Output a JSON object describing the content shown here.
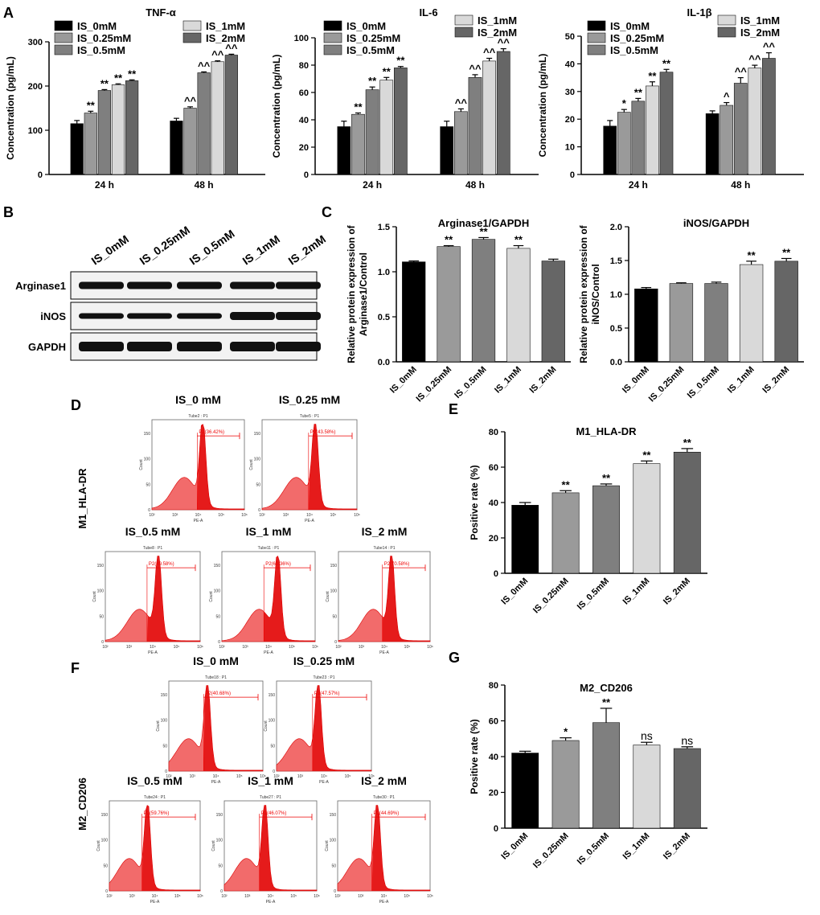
{
  "panel_letters": {
    "a": "A",
    "b": "B",
    "c": "C",
    "d": "D",
    "e": "E",
    "f": "F",
    "g": "G"
  },
  "chart_data": [
    {
      "id": "tnf",
      "type": "bar",
      "title": "TNF-α",
      "ylabel": "Concentration (pg/mL)",
      "ylim": [
        0,
        300
      ],
      "yticks": [
        0,
        100,
        200,
        300
      ],
      "groups": [
        "24 h",
        "48 h"
      ],
      "series": [
        {
          "name": "IS_0mM",
          "color": "#000000",
          "values": [
            115,
            121
          ],
          "errors": [
            7,
            6
          ],
          "sig": [
            "",
            ""
          ]
        },
        {
          "name": "IS_0.25mM",
          "color": "#9a9a9a",
          "values": [
            139,
            150
          ],
          "errors": [
            4,
            3
          ],
          "sig": [
            "**",
            "^^"
          ]
        },
        {
          "name": "IS_0.5mM",
          "color": "#7f7f7f",
          "values": [
            190,
            230
          ],
          "errors": [
            2,
            2
          ],
          "sig": [
            "**",
            "^^"
          ]
        },
        {
          "name": "IS_1mM",
          "color": "#d9d9d9",
          "values": [
            203,
            255
          ],
          "errors": [
            2,
            2
          ],
          "sig": [
            "**",
            "^^"
          ]
        },
        {
          "name": "IS_2mM",
          "color": "#666666",
          "values": [
            212,
            270
          ],
          "errors": [
            2,
            2
          ],
          "sig": [
            "**",
            "^^"
          ]
        }
      ]
    },
    {
      "id": "il6",
      "type": "bar",
      "title": "IL-6",
      "ylabel": "Concentration (pg/mL)",
      "ylim": [
        0,
        100
      ],
      "yticks": [
        0,
        20,
        40,
        60,
        80,
        100
      ],
      "groups": [
        "24 h",
        "48 h"
      ],
      "series": [
        {
          "name": "IS_0mM",
          "color": "#000000",
          "values": [
            35,
            35
          ],
          "errors": [
            4,
            4
          ],
          "sig": [
            "",
            ""
          ]
        },
        {
          "name": "IS_0.25mM",
          "color": "#9a9a9a",
          "values": [
            44,
            46
          ],
          "errors": [
            1,
            2
          ],
          "sig": [
            "**",
            "^^"
          ]
        },
        {
          "name": "IS_0.5mM",
          "color": "#7f7f7f",
          "values": [
            62,
            71
          ],
          "errors": [
            2,
            2
          ],
          "sig": [
            "**",
            "^^"
          ]
        },
        {
          "name": "IS_1mM",
          "color": "#d9d9d9",
          "values": [
            69,
            83
          ],
          "errors": [
            2,
            2
          ],
          "sig": [
            "**",
            "^^"
          ]
        },
        {
          "name": "IS_2mM",
          "color": "#666666",
          "values": [
            78,
            90
          ],
          "errors": [
            1,
            2
          ],
          "sig": [
            "**",
            "^^"
          ]
        }
      ]
    },
    {
      "id": "il1b",
      "type": "bar",
      "title": "IL-1β",
      "ylabel": "Concentration (pg/mL)",
      "ylim": [
        0,
        50
      ],
      "yticks": [
        0,
        10,
        20,
        30,
        40,
        50
      ],
      "groups": [
        "24 h",
        "48 h"
      ],
      "series": [
        {
          "name": "IS_0mM",
          "color": "#000000",
          "values": [
            17.5,
            22
          ],
          "errors": [
            2,
            1
          ],
          "sig": [
            "",
            ""
          ]
        },
        {
          "name": "IS_0.25mM",
          "color": "#9a9a9a",
          "values": [
            22.5,
            25
          ],
          "errors": [
            1,
            1
          ],
          "sig": [
            "*",
            "^"
          ]
        },
        {
          "name": "IS_0.5mM",
          "color": "#7f7f7f",
          "values": [
            26.5,
            33
          ],
          "errors": [
            1,
            2
          ],
          "sig": [
            "**",
            "^^"
          ]
        },
        {
          "name": "IS_1mM",
          "color": "#d9d9d9",
          "values": [
            32,
            38.5
          ],
          "errors": [
            1.5,
            1
          ],
          "sig": [
            "**",
            "^^"
          ]
        },
        {
          "name": "IS_2mM",
          "color": "#666666",
          "values": [
            37,
            42
          ],
          "errors": [
            1,
            2
          ],
          "sig": [
            "**",
            "^^"
          ]
        }
      ]
    },
    {
      "id": "arg",
      "type": "bar",
      "title": "Arginase1/GAPDH",
      "ylabel_lines": [
        "Relative protein expression of",
        "Arginase1/Control"
      ],
      "ylim": [
        0,
        1.5
      ],
      "yticks": [
        0.0,
        0.5,
        1.0,
        1.5
      ],
      "tick_decimals": 1,
      "categories": [
        "IS_0mM",
        "IS_0.25mM",
        "IS_0.5mM",
        "IS_1mM",
        "IS_2mM"
      ],
      "colors": [
        "#000000",
        "#9a9a9a",
        "#7f7f7f",
        "#d9d9d9",
        "#666666"
      ],
      "values": [
        1.11,
        1.28,
        1.36,
        1.26,
        1.12
      ],
      "errors": [
        0.01,
        0.01,
        0.02,
        0.03,
        0.02
      ],
      "sig": [
        "",
        "**",
        "**",
        "**",
        ""
      ]
    },
    {
      "id": "inos",
      "type": "bar",
      "title": "iNOS/GAPDH",
      "ylabel_lines": [
        "Relative protein expression of",
        "iNOS/Control"
      ],
      "ylim": [
        0,
        2.0
      ],
      "yticks": [
        0.0,
        0.5,
        1.0,
        1.5,
        2.0
      ],
      "tick_decimals": 1,
      "categories": [
        "IS_0mM",
        "IS_0.25mM",
        "IS_0.5mM",
        "IS_1mM",
        "IS_2mM"
      ],
      "colors": [
        "#000000",
        "#9a9a9a",
        "#7f7f7f",
        "#d9d9d9",
        "#666666"
      ],
      "values": [
        1.08,
        1.16,
        1.16,
        1.44,
        1.49
      ],
      "errors": [
        0.02,
        0.01,
        0.02,
        0.05,
        0.04
      ],
      "sig": [
        "",
        "",
        "",
        "**",
        "**"
      ]
    },
    {
      "id": "m1",
      "type": "bar",
      "title": "M1_HLA-DR",
      "ylabel": "Positive rate (%)",
      "ylim": [
        0,
        80
      ],
      "yticks": [
        0,
        20,
        40,
        60,
        80
      ],
      "categories": [
        "IS_0mM",
        "IS_0.25mM",
        "IS_0.5mM",
        "IS_1mM",
        "IS_2mM"
      ],
      "colors": [
        "#000000",
        "#9a9a9a",
        "#7f7f7f",
        "#d9d9d9",
        "#666666"
      ],
      "values": [
        38.5,
        45.5,
        49.5,
        62,
        68.5
      ],
      "errors": [
        1.5,
        1.2,
        1.0,
        1.5,
        2.0
      ],
      "sig": [
        "",
        "**",
        "**",
        "**",
        "**"
      ]
    },
    {
      "id": "m2",
      "type": "bar",
      "title": "M2_CD206",
      "ylabel": "Positive rate (%)",
      "ylim": [
        0,
        80
      ],
      "yticks": [
        0,
        20,
        40,
        60,
        80
      ],
      "categories": [
        "IS_0mM",
        "IS_0.25mM",
        "IS_0.5mM",
        "IS_1mM",
        "IS_2mM"
      ],
      "colors": [
        "#000000",
        "#9a9a9a",
        "#7f7f7f",
        "#d9d9d9",
        "#666666"
      ],
      "values": [
        42,
        49,
        59,
        46.5,
        44.5
      ],
      "errors": [
        1.0,
        1.5,
        8.0,
        1.5,
        1.0
      ],
      "sig": [
        "",
        "*",
        "**",
        "ns",
        "ns"
      ]
    }
  ],
  "western_blot": {
    "lane_labels": [
      "IS_0mM",
      "IS_0.25mM",
      "IS_0.5mM",
      "IS_1mM",
      "IS_2mM"
    ],
    "rows": [
      "Arginase1",
      "iNOS",
      "GAPDH"
    ]
  },
  "flow": {
    "d_side_label": "M1_HLA-DR",
    "f_side_label": "M2_CD206",
    "d_plots": [
      {
        "title": "IS_0 mM",
        "tube": "Tube2 : P1",
        "gate": "P2(36.42%)"
      },
      {
        "title": "IS_0.25 mM",
        "tube": "Tube5 : P1",
        "gate": "P2(43.58%)"
      },
      {
        "title": "IS_0.5 mM",
        "tube": "Tube8 : P1",
        "gate": "P2(49.58%)"
      },
      {
        "title": "IS_1 mM",
        "tube": "Tube11 : P1",
        "gate": "P2(60.36%)"
      },
      {
        "title": "IS_2 mM",
        "tube": "Tube14 : P1",
        "gate": "P2(70.58%)"
      }
    ],
    "f_plots": [
      {
        "title": "IS_0 mM",
        "tube": "Tube18 : P1",
        "gate": "P2(40.68%)"
      },
      {
        "title": "IS_0.25 mM",
        "tube": "Tube23 : P1",
        "gate": "P2(47.57%)"
      },
      {
        "title": "IS_0.5 mM",
        "tube": "Tube24 : P1",
        "gate": "P2(59.76%)"
      },
      {
        "title": "IS_1 mM",
        "tube": "Tube27 : P1",
        "gate": "P2(46.07%)"
      },
      {
        "title": "IS_2 mM",
        "tube": "Tube30 : P1",
        "gate": "P2(44.69%)"
      }
    ],
    "x_axis_label": "PE-A",
    "y_axis_label": "Count",
    "x_tick_labels": [
      "10²",
      "10³",
      "10⁴",
      "10⁵",
      "10⁶"
    ],
    "y_tick_labels": [
      "0",
      "50",
      "100",
      "150"
    ]
  }
}
